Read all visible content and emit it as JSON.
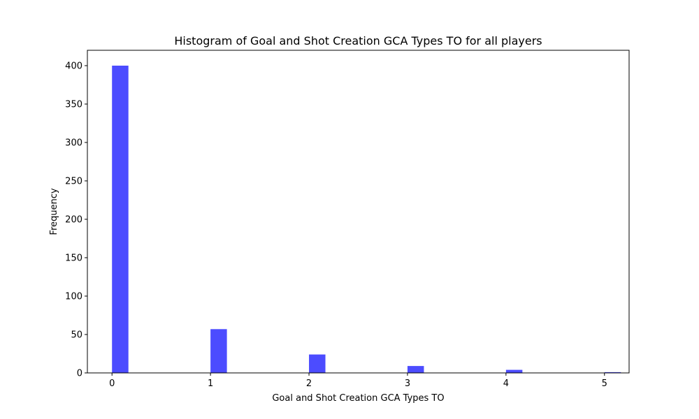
{
  "chart_data": {
    "type": "bar",
    "title": "Histogram of Goal and Shot Creation GCA Types TO for all players",
    "xlabel": "Goal and Shot Creation GCA Types TO",
    "ylabel": "Frequency",
    "x_ticks": [
      "0",
      "1",
      "2",
      "3",
      "4",
      "5"
    ],
    "y_ticks": [
      "0",
      "50",
      "100",
      "150",
      "200",
      "250",
      "300",
      "350",
      "400"
    ],
    "xlim": [
      -0.25,
      5.25
    ],
    "ylim": [
      0,
      420
    ],
    "bin_width": 0.1667,
    "bars": [
      {
        "x": 0,
        "value": 400
      },
      {
        "x": 1,
        "value": 57
      },
      {
        "x": 2,
        "value": 24
      },
      {
        "x": 3,
        "value": 9
      },
      {
        "x": 4,
        "value": 4
      },
      {
        "x": 5,
        "value": 1
      }
    ],
    "bar_color": "#4c4cff",
    "grid": false,
    "legend": "none"
  }
}
